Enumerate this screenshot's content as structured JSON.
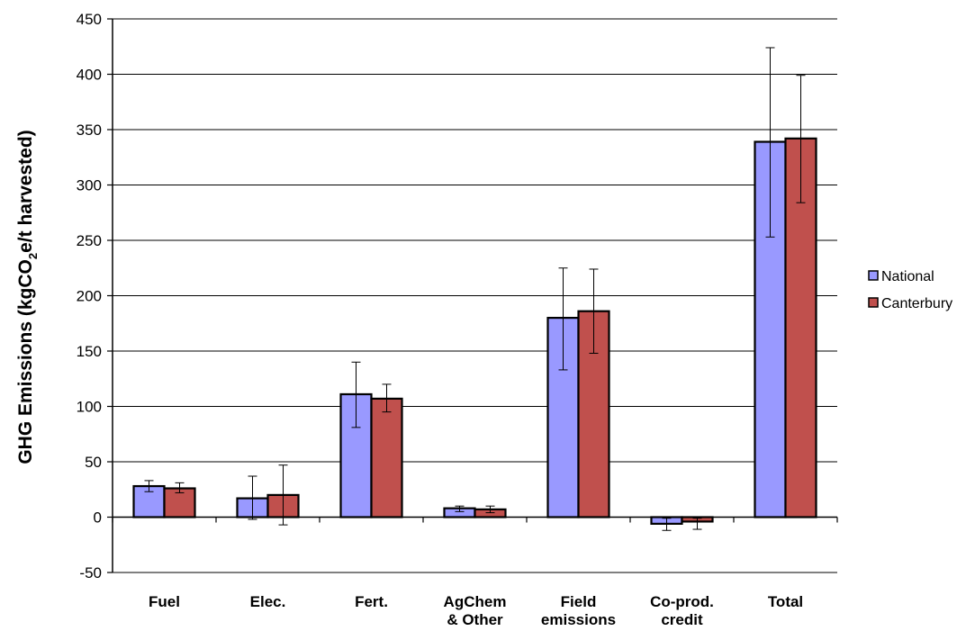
{
  "chart_data": {
    "type": "bar",
    "title": "",
    "xlabel": "",
    "ylabel": {
      "prefix": "GHG Emissions (kgCO",
      "subscript": "2",
      "suffix": "e/t harvested)"
    },
    "ylim": [
      -50,
      450
    ],
    "yticks": [
      -50,
      0,
      50,
      100,
      150,
      200,
      250,
      300,
      350,
      400,
      450
    ],
    "ytick_labels": [
      "-50",
      "0",
      "50",
      "100",
      "150",
      "200",
      "250",
      "300",
      "350",
      "400",
      "450"
    ],
    "grid": "horizontal",
    "legend_position": "right",
    "categories": [
      [
        "Fuel"
      ],
      [
        "Elec."
      ],
      [
        "Fert."
      ],
      [
        "AgChem",
        "& Other"
      ],
      [
        "Field",
        "emissions"
      ],
      [
        "Co-prod.",
        "credit"
      ],
      [
        "Total"
      ]
    ],
    "series": [
      {
        "name": "National",
        "color": "#9999ff",
        "values": [
          28,
          17,
          111,
          8,
          180,
          -6,
          339
        ],
        "error_low": [
          23,
          -2,
          81,
          5,
          133,
          -12,
          253
        ],
        "error_high": [
          33,
          37,
          140,
          10,
          225,
          -1,
          424
        ]
      },
      {
        "name": "Canterbury",
        "color": "#c0504d",
        "values": [
          26,
          20,
          107,
          7,
          186,
          -4,
          342
        ],
        "error_low": [
          22,
          -7,
          95,
          4,
          148,
          -11,
          284
        ],
        "error_high": [
          31,
          47,
          120,
          10,
          224,
          -1,
          399
        ]
      }
    ]
  }
}
